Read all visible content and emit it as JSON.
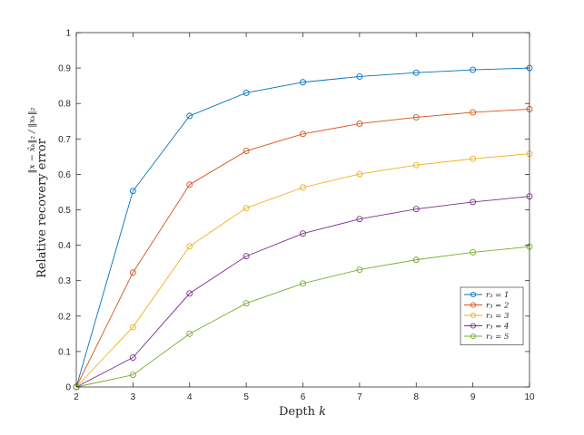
{
  "chart_data": {
    "type": "line",
    "title": "",
    "xlabel": "Depth k",
    "xlabel_parts": {
      "text": "Depth ",
      "var": "k"
    },
    "ylabel": "Relative recovery error",
    "ylabel_formula": "‖x − x̂ₖ‖₂ / ‖xₖ‖₂",
    "xlim": [
      2,
      10
    ],
    "ylim": [
      0,
      1
    ],
    "xticks": [
      2,
      3,
      4,
      5,
      6,
      7,
      8,
      9,
      10
    ],
    "yticks": [
      0,
      0.1,
      0.2,
      0.3,
      0.4,
      0.5,
      0.6,
      0.7,
      0.8,
      0.9,
      1
    ],
    "ytick_labels": [
      "0",
      "0.1",
      "0.2",
      "0.3",
      "0.4",
      "0.5",
      "0.6",
      "0.7",
      "0.8",
      "0.9",
      "1"
    ],
    "grid": false,
    "legend_position": "bottom-right",
    "marker": "circle",
    "x": [
      2,
      3,
      4,
      5,
      6,
      7,
      8,
      9,
      10
    ],
    "series": [
      {
        "name": "r₃ = 1",
        "color": "#0072BD",
        "values": [
          0,
          0.553,
          0.765,
          0.83,
          0.86,
          0.876,
          0.887,
          0.895,
          0.9
        ]
      },
      {
        "name": "r₃ = 2",
        "color": "#D95319",
        "values": [
          0,
          0.323,
          0.571,
          0.666,
          0.714,
          0.743,
          0.761,
          0.775,
          0.784
        ]
      },
      {
        "name": "r₃ = 3",
        "color": "#EDB120",
        "values": [
          0,
          0.169,
          0.397,
          0.505,
          0.563,
          0.601,
          0.626,
          0.644,
          0.658
        ]
      },
      {
        "name": "r₃ = 4",
        "color": "#7E2F8E",
        "values": [
          0,
          0.083,
          0.264,
          0.369,
          0.433,
          0.474,
          0.502,
          0.522,
          0.538
        ]
      },
      {
        "name": "r₃ = 5",
        "color": "#77AC30",
        "values": [
          0,
          0.034,
          0.15,
          0.236,
          0.292,
          0.331,
          0.359,
          0.38,
          0.396
        ]
      }
    ]
  }
}
